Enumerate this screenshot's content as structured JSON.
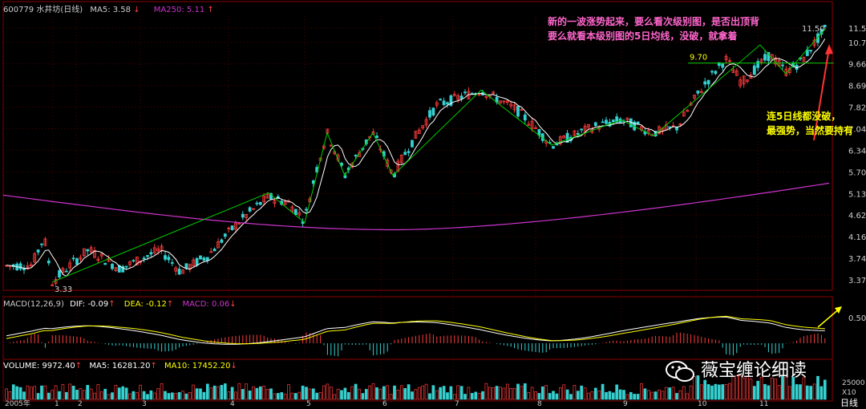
{
  "header": {
    "code": "600779",
    "name": "水井坊(日线)",
    "ma5_label": "MA5:",
    "ma5_value": "3.58",
    "ma250_label": "MA250:",
    "ma250_value": "5.11"
  },
  "macd_header": {
    "label": "MACD(12,26,9)",
    "dif": "DIF: -0.09",
    "dea": "DEA: -0.12",
    "macd": "MACD: 0.06"
  },
  "volume_header": {
    "label": "VOLUME: 9972.40",
    "ma5": "MA5: 16281.20",
    "ma10": "MA10: 17452.20"
  },
  "annotations": {
    "top_line1": "新的一波涨势起来，要么看次级别图，是否出顶背",
    "top_line2": "要么就看本级别图的5日均线，没破，就拿着",
    "right_line1": "连5日线都没破，",
    "right_line2": "最强势，当然要持有"
  },
  "watermark": "薇宝缠论细读",
  "bottom_right_label": "日线",
  "colors": {
    "up": "#ff3b3b",
    "down": "#35d0d0",
    "ma5": "#ffffff",
    "ma250": "#cc33cc",
    "trend": "#00cc00",
    "annotation_top": "#ff66cc",
    "annotation_right": "#ffff00"
  },
  "chart_data": {
    "type": "candlestick",
    "y_axis_ticks": [
      "11.50",
      "10.73",
      "9.66",
      "8.69",
      "7.82",
      "7.04",
      "6.34",
      "5.70",
      "5.13",
      "4.62",
      "4.16",
      "3.74",
      "3.37"
    ],
    "price_labels": [
      "3.33",
      "9.70",
      "11.50"
    ],
    "x_axis_labels": [
      "2005年",
      "1",
      "2",
      "3",
      "4",
      "5",
      "6",
      "7",
      "8",
      "9",
      "10",
      "11"
    ],
    "low_price": 3.33,
    "high_price": 11.5,
    "support_level": 9.7,
    "macd_ticks": [
      "0.50"
    ],
    "volume_ticks": [
      "25000",
      "X10"
    ]
  }
}
